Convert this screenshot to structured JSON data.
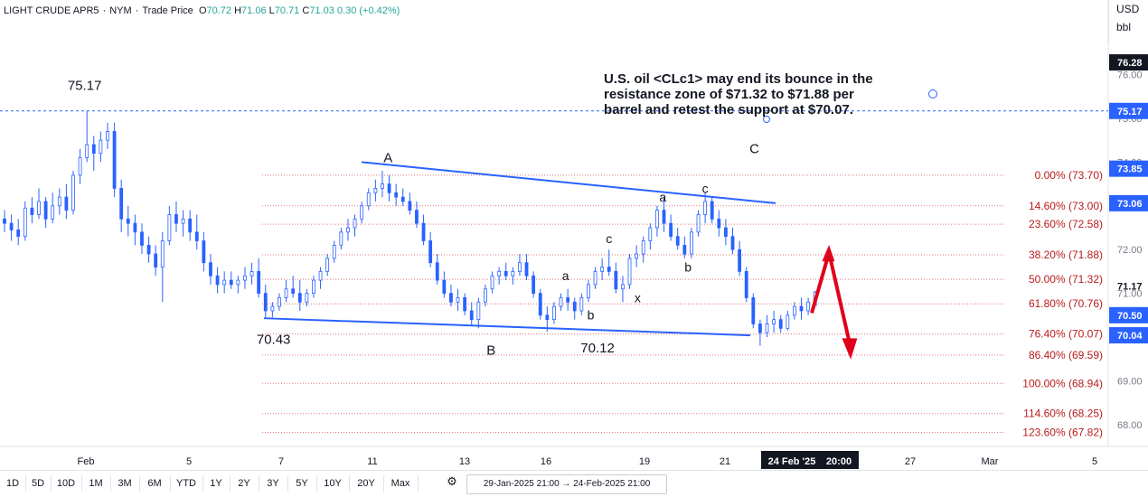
{
  "legend": {
    "symbol": "LIGHT CRUDE APR5",
    "exchange": "NYM",
    "source": "Trade Price",
    "open_label": "O",
    "open": "70.72",
    "high_label": "H",
    "high": "71.06",
    "low_label": "L",
    "low": "70.71",
    "close_label": "C",
    "close": "71.03",
    "change": "0.30 (+0.42%)"
  },
  "currency": {
    "unit": "USD",
    "quantity": "bbl"
  },
  "annotation": {
    "line1": "U.S. oil <CLc1> may end its bounce in the",
    "line2": "resistance zone of $71.32 to $71.88 per",
    "line3": "barrel and retest the support at $70.07."
  },
  "bottom_bar": {
    "ranges": [
      "1D",
      "5D",
      "10D",
      "1M",
      "3M",
      "6M",
      "YTD",
      "1Y",
      "2Y",
      "3Y",
      "5Y",
      "10Y",
      "20Y",
      "Max"
    ],
    "date_range": "29-Jan-2025 21:00 → 24-Feb-2025 21:00"
  },
  "colors": {
    "candle": "#2962ff",
    "fib_line": "#e57373",
    "trend_line": "#2962ff",
    "arrow": "#e0001b",
    "label_bg": "#2962ff"
  },
  "chart_data": {
    "type": "candlestick",
    "y_axis": {
      "min": 67.5,
      "max": 77.5,
      "ticks": [
        68.0,
        69.0,
        70.0,
        71.0,
        72.0,
        73.0,
        74.0,
        75.0,
        76.0
      ]
    },
    "x_axis": {
      "ticks": [
        "Feb",
        "5",
        "7",
        "11",
        "13",
        "16",
        "19",
        "21",
        "24 Feb '25",
        "20:00",
        "27",
        "Mar",
        "5"
      ]
    },
    "price_labels": [
      {
        "value": "76.28",
        "style": "dark"
      },
      {
        "value": "75.17",
        "style": "blue"
      },
      {
        "value": "73.85",
        "style": "blue"
      },
      {
        "value": "73.06",
        "style": "blue"
      },
      {
        "value": "71.17",
        "style": "plain"
      },
      {
        "value": "70.50",
        "style": "blue"
      },
      {
        "value": "70.04",
        "style": "blue"
      }
    ],
    "fib_levels": [
      {
        "label": "0.00% (73.70)",
        "price": 73.7
      },
      {
        "label": "14.60% (73.00)",
        "price": 73.0
      },
      {
        "label": "23.60% (72.58)",
        "price": 72.58
      },
      {
        "label": "38.20% (71.88)",
        "price": 71.88
      },
      {
        "label": "50.00% (71.32)",
        "price": 71.32
      },
      {
        "label": "61.80% (70.76)",
        "price": 70.76
      },
      {
        "label": "76.40% (70.07)",
        "price": 70.07
      },
      {
        "label": "86.40% (69.59)",
        "price": 69.59
      },
      {
        "label": "100.00% (68.94)",
        "price": 68.94
      },
      {
        "label": "114.60% (68.25)",
        "price": 68.25
      },
      {
        "label": "123.60% (67.82)",
        "price": 67.82
      }
    ],
    "dashed_level": {
      "price": 75.17
    },
    "wave_labels": [
      {
        "text": "75.17",
        "t": 0.07,
        "price": 75.65
      },
      {
        "text": "A",
        "t": 0.335,
        "price": 74.0
      },
      {
        "text": "70.43",
        "t": 0.235,
        "price": 69.85
      },
      {
        "text": "B",
        "t": 0.425,
        "price": 69.6
      },
      {
        "text": "70.12",
        "t": 0.518,
        "price": 69.65
      },
      {
        "text": "a",
        "t": 0.49,
        "price": 71.3
      },
      {
        "text": "b",
        "t": 0.512,
        "price": 70.4
      },
      {
        "text": "c",
        "t": 0.528,
        "price": 72.15
      },
      {
        "text": "x",
        "t": 0.553,
        "price": 70.8
      },
      {
        "text": "a",
        "t": 0.575,
        "price": 73.1
      },
      {
        "text": "b",
        "t": 0.597,
        "price": 71.5
      },
      {
        "text": "c",
        "t": 0.612,
        "price": 73.3
      },
      {
        "text": "C",
        "t": 0.655,
        "price": 74.2
      }
    ],
    "series": [
      {
        "t": 0.0,
        "o": 72.7,
        "h": 72.9,
        "l": 72.4,
        "c": 72.6
      },
      {
        "t": 0.006,
        "o": 72.6,
        "h": 72.8,
        "l": 72.2,
        "c": 72.45
      },
      {
        "t": 0.012,
        "o": 72.45,
        "h": 72.7,
        "l": 72.1,
        "c": 72.3
      },
      {
        "t": 0.018,
        "o": 72.3,
        "h": 73.1,
        "l": 72.2,
        "c": 72.95
      },
      {
        "t": 0.024,
        "o": 72.95,
        "h": 73.2,
        "l": 72.6,
        "c": 72.8
      },
      {
        "t": 0.03,
        "o": 72.8,
        "h": 73.4,
        "l": 72.7,
        "c": 73.1
      },
      {
        "t": 0.036,
        "o": 73.1,
        "h": 73.2,
        "l": 72.5,
        "c": 72.7
      },
      {
        "t": 0.042,
        "o": 72.7,
        "h": 73.3,
        "l": 72.6,
        "c": 73.0
      },
      {
        "t": 0.048,
        "o": 73.0,
        "h": 73.4,
        "l": 72.8,
        "c": 73.2
      },
      {
        "t": 0.054,
        "o": 73.2,
        "h": 73.5,
        "l": 72.7,
        "c": 72.9
      },
      {
        "t": 0.06,
        "o": 72.9,
        "h": 73.8,
        "l": 72.8,
        "c": 73.7
      },
      {
        "t": 0.066,
        "o": 73.7,
        "h": 74.3,
        "l": 73.5,
        "c": 74.1
      },
      {
        "t": 0.072,
        "o": 74.1,
        "h": 75.17,
        "l": 74.0,
        "c": 74.4
      },
      {
        "t": 0.078,
        "o": 74.4,
        "h": 74.6,
        "l": 73.8,
        "c": 74.2
      },
      {
        "t": 0.084,
        "o": 74.2,
        "h": 74.7,
        "l": 74.0,
        "c": 74.5
      },
      {
        "t": 0.09,
        "o": 74.5,
        "h": 74.9,
        "l": 74.3,
        "c": 74.7
      },
      {
        "t": 0.096,
        "o": 74.7,
        "h": 74.9,
        "l": 73.2,
        "c": 73.4
      },
      {
        "t": 0.102,
        "o": 73.4,
        "h": 73.6,
        "l": 72.4,
        "c": 72.7
      },
      {
        "t": 0.108,
        "o": 72.7,
        "h": 73.0,
        "l": 72.3,
        "c": 72.6
      },
      {
        "t": 0.114,
        "o": 72.6,
        "h": 72.8,
        "l": 72.1,
        "c": 72.4
      },
      {
        "t": 0.12,
        "o": 72.4,
        "h": 72.6,
        "l": 71.9,
        "c": 72.1
      },
      {
        "t": 0.126,
        "o": 72.1,
        "h": 72.3,
        "l": 71.7,
        "c": 71.9
      },
      {
        "t": 0.132,
        "o": 71.9,
        "h": 72.1,
        "l": 71.4,
        "c": 71.6
      },
      {
        "t": 0.138,
        "o": 71.6,
        "h": 72.4,
        "l": 70.8,
        "c": 72.2
      },
      {
        "t": 0.144,
        "o": 72.2,
        "h": 73.0,
        "l": 72.1,
        "c": 72.8
      },
      {
        "t": 0.15,
        "o": 72.8,
        "h": 73.1,
        "l": 72.4,
        "c": 72.6
      },
      {
        "t": 0.156,
        "o": 72.6,
        "h": 72.9,
        "l": 72.3,
        "c": 72.7
      },
      {
        "t": 0.162,
        "o": 72.7,
        "h": 72.9,
        "l": 72.2,
        "c": 72.4
      },
      {
        "t": 0.168,
        "o": 72.4,
        "h": 72.8,
        "l": 72.0,
        "c": 72.2
      },
      {
        "t": 0.174,
        "o": 72.2,
        "h": 72.4,
        "l": 71.5,
        "c": 71.7
      },
      {
        "t": 0.18,
        "o": 71.7,
        "h": 71.9,
        "l": 71.2,
        "c": 71.4
      },
      {
        "t": 0.186,
        "o": 71.4,
        "h": 71.6,
        "l": 71.0,
        "c": 71.2
      },
      {
        "t": 0.192,
        "o": 71.2,
        "h": 71.5,
        "l": 71.0,
        "c": 71.3
      },
      {
        "t": 0.198,
        "o": 71.3,
        "h": 71.5,
        "l": 71.1,
        "c": 71.2
      },
      {
        "t": 0.204,
        "o": 71.2,
        "h": 71.4,
        "l": 71.0,
        "c": 71.3
      },
      {
        "t": 0.21,
        "o": 71.3,
        "h": 71.6,
        "l": 71.1,
        "c": 71.4
      },
      {
        "t": 0.216,
        "o": 71.4,
        "h": 71.7,
        "l": 71.2,
        "c": 71.5
      },
      {
        "t": 0.222,
        "o": 71.5,
        "h": 71.8,
        "l": 70.9,
        "c": 71.0
      },
      {
        "t": 0.228,
        "o": 71.0,
        "h": 71.2,
        "l": 70.43,
        "c": 70.6
      },
      {
        "t": 0.234,
        "o": 70.6,
        "h": 70.8,
        "l": 70.45,
        "c": 70.7
      },
      {
        "t": 0.24,
        "o": 70.7,
        "h": 71.0,
        "l": 70.6,
        "c": 70.9
      },
      {
        "t": 0.246,
        "o": 70.9,
        "h": 71.3,
        "l": 70.8,
        "c": 71.1
      },
      {
        "t": 0.252,
        "o": 71.1,
        "h": 71.4,
        "l": 70.9,
        "c": 71.0
      },
      {
        "t": 0.258,
        "o": 71.0,
        "h": 71.3,
        "l": 70.6,
        "c": 70.8
      },
      {
        "t": 0.264,
        "o": 70.8,
        "h": 71.1,
        "l": 70.7,
        "c": 71.0
      },
      {
        "t": 0.27,
        "o": 71.0,
        "h": 71.4,
        "l": 70.9,
        "c": 71.3
      },
      {
        "t": 0.276,
        "o": 71.3,
        "h": 71.6,
        "l": 71.1,
        "c": 71.5
      },
      {
        "t": 0.282,
        "o": 71.5,
        "h": 71.9,
        "l": 71.4,
        "c": 71.8
      },
      {
        "t": 0.288,
        "o": 71.8,
        "h": 72.2,
        "l": 71.7,
        "c": 72.1
      },
      {
        "t": 0.294,
        "o": 72.1,
        "h": 72.5,
        "l": 72.0,
        "c": 72.4
      },
      {
        "t": 0.3,
        "o": 72.4,
        "h": 72.7,
        "l": 72.2,
        "c": 72.5
      },
      {
        "t": 0.306,
        "o": 72.5,
        "h": 72.8,
        "l": 72.3,
        "c": 72.7
      },
      {
        "t": 0.312,
        "o": 72.7,
        "h": 73.1,
        "l": 72.6,
        "c": 73.0
      },
      {
        "t": 0.318,
        "o": 73.0,
        "h": 73.4,
        "l": 72.9,
        "c": 73.3
      },
      {
        "t": 0.324,
        "o": 73.3,
        "h": 73.6,
        "l": 73.1,
        "c": 73.4
      },
      {
        "t": 0.33,
        "o": 73.4,
        "h": 73.8,
        "l": 73.2,
        "c": 73.5
      },
      {
        "t": 0.336,
        "o": 73.5,
        "h": 73.7,
        "l": 73.1,
        "c": 73.3
      },
      {
        "t": 0.342,
        "o": 73.3,
        "h": 73.5,
        "l": 73.0,
        "c": 73.2
      },
      {
        "t": 0.348,
        "o": 73.2,
        "h": 73.4,
        "l": 73.0,
        "c": 73.1
      },
      {
        "t": 0.354,
        "o": 73.1,
        "h": 73.3,
        "l": 72.8,
        "c": 72.9
      },
      {
        "t": 0.36,
        "o": 72.9,
        "h": 73.1,
        "l": 72.5,
        "c": 72.6
      },
      {
        "t": 0.366,
        "o": 72.6,
        "h": 72.8,
        "l": 72.1,
        "c": 72.2
      },
      {
        "t": 0.372,
        "o": 72.2,
        "h": 72.4,
        "l": 71.6,
        "c": 71.7
      },
      {
        "t": 0.378,
        "o": 71.7,
        "h": 71.9,
        "l": 71.2,
        "c": 71.3
      },
      {
        "t": 0.384,
        "o": 71.3,
        "h": 71.5,
        "l": 70.9,
        "c": 71.0
      },
      {
        "t": 0.39,
        "o": 71.0,
        "h": 71.2,
        "l": 70.7,
        "c": 70.8
      },
      {
        "t": 0.396,
        "o": 70.8,
        "h": 71.1,
        "l": 70.6,
        "c": 70.9
      },
      {
        "t": 0.402,
        "o": 70.9,
        "h": 71.0,
        "l": 70.5,
        "c": 70.6
      },
      {
        "t": 0.408,
        "o": 70.6,
        "h": 70.8,
        "l": 70.25,
        "c": 70.4
      },
      {
        "t": 0.414,
        "o": 70.4,
        "h": 70.9,
        "l": 70.2,
        "c": 70.8
      },
      {
        "t": 0.42,
        "o": 70.8,
        "h": 71.2,
        "l": 70.7,
        "c": 71.1
      },
      {
        "t": 0.426,
        "o": 71.1,
        "h": 71.5,
        "l": 71.0,
        "c": 71.4
      },
      {
        "t": 0.432,
        "o": 71.4,
        "h": 71.6,
        "l": 71.2,
        "c": 71.5
      },
      {
        "t": 0.438,
        "o": 71.5,
        "h": 71.7,
        "l": 71.3,
        "c": 71.4
      },
      {
        "t": 0.444,
        "o": 71.4,
        "h": 71.6,
        "l": 71.2,
        "c": 71.5
      },
      {
        "t": 0.45,
        "o": 71.5,
        "h": 71.9,
        "l": 71.4,
        "c": 71.7
      },
      {
        "t": 0.456,
        "o": 71.7,
        "h": 71.9,
        "l": 71.3,
        "c": 71.4
      },
      {
        "t": 0.462,
        "o": 71.4,
        "h": 71.5,
        "l": 70.9,
        "c": 71.0
      },
      {
        "t": 0.468,
        "o": 71.0,
        "h": 71.1,
        "l": 70.4,
        "c": 70.5
      },
      {
        "t": 0.474,
        "o": 70.5,
        "h": 70.7,
        "l": 70.12,
        "c": 70.4
      },
      {
        "t": 0.48,
        "o": 70.4,
        "h": 70.8,
        "l": 70.3,
        "c": 70.7
      },
      {
        "t": 0.486,
        "o": 70.7,
        "h": 71.0,
        "l": 70.6,
        "c": 70.9
      },
      {
        "t": 0.492,
        "o": 70.9,
        "h": 71.1,
        "l": 70.6,
        "c": 70.8
      },
      {
        "t": 0.498,
        "o": 70.8,
        "h": 70.9,
        "l": 70.4,
        "c": 70.6
      },
      {
        "t": 0.504,
        "o": 70.6,
        "h": 71.0,
        "l": 70.5,
        "c": 70.9
      },
      {
        "t": 0.51,
        "o": 70.9,
        "h": 71.3,
        "l": 70.8,
        "c": 71.2
      },
      {
        "t": 0.516,
        "o": 71.2,
        "h": 71.6,
        "l": 71.1,
        "c": 71.5
      },
      {
        "t": 0.522,
        "o": 71.5,
        "h": 71.8,
        "l": 71.3,
        "c": 71.6
      },
      {
        "t": 0.528,
        "o": 71.6,
        "h": 72.0,
        "l": 71.4,
        "c": 71.5
      },
      {
        "t": 0.534,
        "o": 71.5,
        "h": 71.7,
        "l": 71.0,
        "c": 71.1
      },
      {
        "t": 0.54,
        "o": 71.1,
        "h": 71.4,
        "l": 70.8,
        "c": 71.2
      },
      {
        "t": 0.546,
        "o": 71.2,
        "h": 71.9,
        "l": 71.1,
        "c": 71.8
      },
      {
        "t": 0.552,
        "o": 71.8,
        "h": 72.1,
        "l": 71.6,
        "c": 71.9
      },
      {
        "t": 0.558,
        "o": 71.9,
        "h": 72.3,
        "l": 71.7,
        "c": 72.2
      },
      {
        "t": 0.564,
        "o": 72.2,
        "h": 72.6,
        "l": 72.0,
        "c": 72.5
      },
      {
        "t": 0.57,
        "o": 72.5,
        "h": 73.0,
        "l": 72.3,
        "c": 72.9
      },
      {
        "t": 0.576,
        "o": 72.9,
        "h": 73.2,
        "l": 72.4,
        "c": 72.6
      },
      {
        "t": 0.582,
        "o": 72.6,
        "h": 72.8,
        "l": 72.2,
        "c": 72.3
      },
      {
        "t": 0.588,
        "o": 72.3,
        "h": 72.5,
        "l": 72.0,
        "c": 72.1
      },
      {
        "t": 0.594,
        "o": 72.1,
        "h": 72.3,
        "l": 71.8,
        "c": 71.9
      },
      {
        "t": 0.6,
        "o": 71.9,
        "h": 72.5,
        "l": 71.8,
        "c": 72.4
      },
      {
        "t": 0.606,
        "o": 72.4,
        "h": 72.9,
        "l": 72.3,
        "c": 72.8
      },
      {
        "t": 0.612,
        "o": 72.8,
        "h": 73.3,
        "l": 72.6,
        "c": 73.1
      },
      {
        "t": 0.618,
        "o": 73.1,
        "h": 73.2,
        "l": 72.6,
        "c": 72.7
      },
      {
        "t": 0.624,
        "o": 72.7,
        "h": 72.9,
        "l": 72.3,
        "c": 72.5
      },
      {
        "t": 0.63,
        "o": 72.5,
        "h": 72.7,
        "l": 72.1,
        "c": 72.3
      },
      {
        "t": 0.636,
        "o": 72.3,
        "h": 72.5,
        "l": 71.9,
        "c": 72.0
      },
      {
        "t": 0.642,
        "o": 72.0,
        "h": 72.2,
        "l": 71.4,
        "c": 71.5
      },
      {
        "t": 0.648,
        "o": 71.5,
        "h": 71.6,
        "l": 70.8,
        "c": 70.9
      },
      {
        "t": 0.654,
        "o": 70.9,
        "h": 71.0,
        "l": 70.2,
        "c": 70.3
      },
      {
        "t": 0.66,
        "o": 70.3,
        "h": 70.4,
        "l": 69.8,
        "c": 70.1
      },
      {
        "t": 0.666,
        "o": 70.1,
        "h": 70.5,
        "l": 70.0,
        "c": 70.3
      },
      {
        "t": 0.672,
        "o": 70.3,
        "h": 70.6,
        "l": 70.1,
        "c": 70.4
      },
      {
        "t": 0.678,
        "o": 70.4,
        "h": 70.5,
        "l": 70.1,
        "c": 70.2
      },
      {
        "t": 0.684,
        "o": 70.2,
        "h": 70.6,
        "l": 70.15,
        "c": 70.5
      },
      {
        "t": 0.69,
        "o": 70.5,
        "h": 70.8,
        "l": 70.4,
        "c": 70.7
      },
      {
        "t": 0.696,
        "o": 70.7,
        "h": 70.9,
        "l": 70.4,
        "c": 70.6
      },
      {
        "t": 0.702,
        "o": 70.6,
        "h": 70.9,
        "l": 70.5,
        "c": 70.8
      },
      {
        "t": 0.708,
        "o": 70.72,
        "h": 71.06,
        "l": 70.71,
        "c": 71.03
      }
    ]
  }
}
